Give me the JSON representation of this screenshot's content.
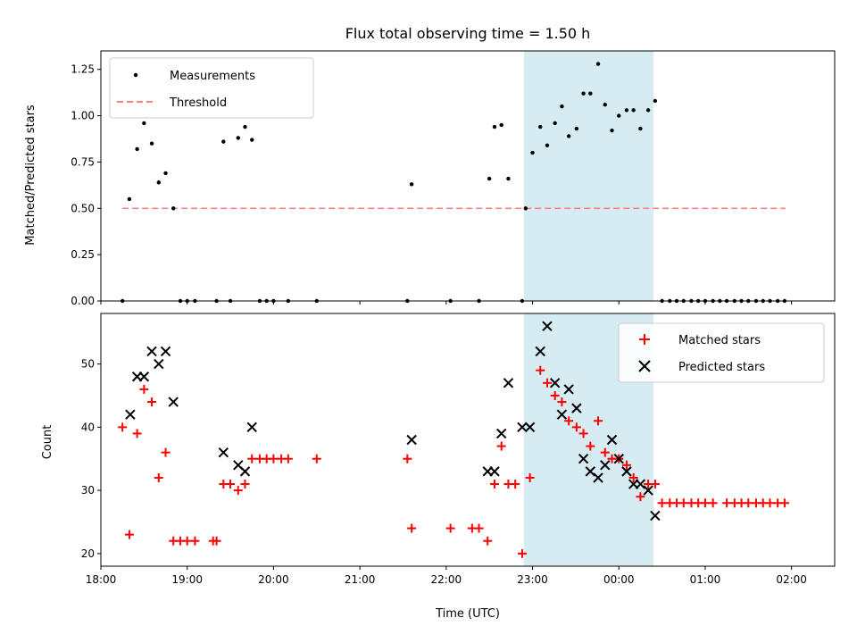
{
  "chart_data": [
    {
      "type": "scatter",
      "title": "Flux total observing time = 1.50 h",
      "xlabel": "",
      "ylabel": "Matched/Predicted stars",
      "xlim": [
        18.0,
        2.5
      ],
      "ylim": [
        0.0,
        1.35
      ],
      "yticks": [
        0.0,
        0.25,
        0.5,
        0.75,
        1.0,
        1.25
      ],
      "ytick_labels": [
        "0.00",
        "0.25",
        "0.50",
        "0.75",
        "1.00",
        "1.25"
      ],
      "shaded_region": [
        22.9,
        24.4
      ],
      "legend": {
        "placement": "top-left",
        "entries": [
          "Measurements",
          "Threshold"
        ]
      },
      "threshold": {
        "name": "Threshold",
        "value": 0.5,
        "x_range": [
          18.25,
          25.93
        ],
        "color": "#ff8080"
      },
      "series": [
        {
          "name": "Measurements",
          "color": "#000000",
          "x": [
            18.25,
            18.33,
            18.42,
            18.5,
            18.59,
            18.67,
            18.75,
            18.84,
            18.92,
            19.0,
            19.09,
            19.34,
            19.42,
            19.5,
            19.59,
            19.67,
            19.75,
            19.84,
            19.92,
            20.0,
            20.17,
            20.5,
            21.55,
            21.6,
            22.05,
            22.38,
            22.5,
            22.56,
            22.64,
            22.72,
            22.88,
            22.92,
            23.0,
            23.09,
            23.17,
            23.26,
            23.34,
            23.42,
            23.51,
            23.59,
            23.67,
            23.76,
            23.84,
            23.92,
            24.0,
            24.09,
            24.17,
            24.25,
            24.34,
            24.42,
            24.5,
            24.59,
            24.67,
            24.75,
            24.84,
            24.92,
            25.0,
            25.09,
            25.17,
            25.25,
            25.34,
            25.42,
            25.5,
            25.59,
            25.67,
            25.75,
            25.84,
            25.92
          ],
          "y": [
            0.0,
            0.55,
            0.82,
            0.96,
            0.85,
            0.64,
            0.69,
            0.5,
            0.0,
            0.0,
            0.0,
            0.0,
            0.86,
            0.0,
            0.88,
            0.94,
            0.87,
            0.0,
            0.0,
            0.0,
            0.0,
            0.0,
            0.0,
            0.63,
            0.0,
            0.0,
            0.66,
            0.94,
            0.95,
            0.66,
            0.0,
            0.5,
            0.8,
            0.94,
            0.84,
            0.96,
            1.05,
            0.89,
            0.93,
            1.12,
            1.12,
            1.28,
            1.06,
            0.92,
            1.0,
            1.03,
            1.03,
            0.93,
            1.03,
            1.08,
            0.0,
            0.0,
            0.0,
            0.0,
            0.0,
            0.0,
            0.0,
            0.0,
            0.0,
            0.0,
            0.0,
            0.0,
            0.0,
            0.0,
            0.0,
            0.0,
            0.0,
            0.0
          ]
        }
      ]
    },
    {
      "type": "scatter",
      "title": "",
      "xlabel": "Time (UTC)",
      "ylabel": "Count",
      "xlim": [
        18.0,
        2.5
      ],
      "ylim": [
        18.0,
        58.0
      ],
      "yticks": [
        20,
        30,
        40,
        50
      ],
      "ytick_labels": [
        "20",
        "30",
        "40",
        "50"
      ],
      "xticks": [
        18,
        19,
        20,
        21,
        22,
        23,
        24,
        25,
        26
      ],
      "xtick_labels": [
        "18:00",
        "19:00",
        "20:00",
        "21:00",
        "22:00",
        "23:00",
        "00:00",
        "01:00",
        "02:00"
      ],
      "shaded_region": [
        22.9,
        24.4
      ],
      "legend": {
        "placement": "top-right",
        "entries": [
          "Matched stars",
          "Predicted stars"
        ]
      },
      "series": [
        {
          "name": "Matched stars",
          "marker": "plus",
          "color": "#ff0000",
          "x": [
            18.25,
            18.33,
            18.42,
            18.5,
            18.59,
            18.67,
            18.75,
            18.84,
            18.92,
            19.0,
            19.09,
            19.3,
            19.34,
            19.42,
            19.5,
            19.59,
            19.67,
            19.75,
            19.84,
            19.92,
            20.0,
            20.09,
            20.17,
            20.5,
            21.55,
            21.6,
            22.05,
            22.3,
            22.38,
            22.48,
            22.56,
            22.64,
            22.72,
            22.8,
            22.88,
            22.97,
            23.09,
            23.17,
            23.26,
            23.34,
            23.42,
            23.51,
            23.59,
            23.67,
            23.76,
            23.84,
            23.92,
            24.0,
            24.09,
            24.17,
            24.25,
            24.34,
            24.42,
            24.5,
            24.59,
            24.67,
            24.75,
            24.84,
            24.92,
            25.0,
            25.09,
            25.25,
            25.34,
            25.42,
            25.5,
            25.59,
            25.67,
            25.75,
            25.84,
            25.92
          ],
          "y": [
            40,
            23,
            39,
            46,
            44,
            32,
            36,
            22,
            22,
            22,
            22,
            22,
            22,
            31,
            31,
            30,
            31,
            35,
            35,
            35,
            35,
            35,
            35,
            35,
            35,
            24,
            24,
            24,
            24,
            22,
            31,
            37,
            31,
            31,
            20,
            32,
            49,
            47,
            45,
            44,
            41,
            40,
            39,
            37,
            41,
            36,
            35,
            35,
            34,
            32,
            29,
            31,
            31,
            28,
            28,
            28,
            28,
            28,
            28,
            28,
            28,
            28,
            28,
            28,
            28,
            28,
            28,
            28,
            28,
            28
          ]
        },
        {
          "name": "Predicted stars",
          "marker": "x",
          "color": "#000000",
          "x": [
            18.34,
            18.42,
            18.5,
            18.59,
            18.67,
            18.75,
            18.84,
            19.42,
            19.59,
            19.67,
            19.75,
            21.6,
            22.48,
            22.56,
            22.64,
            22.72,
            22.88,
            22.97,
            23.09,
            23.17,
            23.26,
            23.34,
            23.42,
            23.51,
            23.59,
            23.67,
            23.76,
            23.84,
            23.92,
            24.0,
            24.09,
            24.17,
            24.25,
            24.34,
            24.42
          ],
          "y": [
            42,
            48,
            48,
            52,
            50,
            52,
            44,
            36,
            34,
            33,
            40,
            38,
            33,
            33,
            39,
            47,
            40,
            40,
            52,
            56,
            47,
            42,
            46,
            43,
            35,
            33,
            32,
            34,
            38,
            35,
            33,
            31,
            31,
            30,
            26
          ]
        }
      ]
    }
  ]
}
